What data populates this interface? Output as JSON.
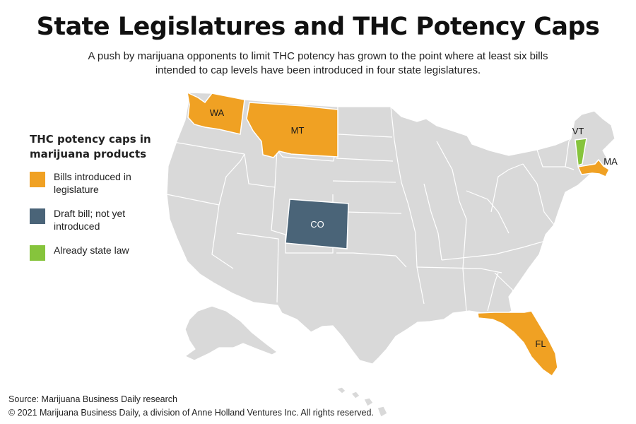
{
  "title": "State Legislatures and THC Potency Caps",
  "subtitle": "A push by marijuana opponents to limit THC potency has grown to the point where at least six bills intended to cap levels have been introduced in four state legislatures.",
  "legend": {
    "title": "THC potency caps in marijuana products",
    "items": [
      {
        "label": "Bills introduced in legislature",
        "color": "#f0a123"
      },
      {
        "label": "Draft bill; not yet introduced",
        "color": "#4a6478"
      },
      {
        "label": "Already state law",
        "color": "#86c43c"
      }
    ]
  },
  "map": {
    "base_color": "#d9d9d9",
    "border_color": "#ffffff",
    "states": {
      "WA": {
        "label": "WA",
        "status": "Bills introduced in legislature"
      },
      "MT": {
        "label": "MT",
        "status": "Bills introduced in legislature"
      },
      "MA": {
        "label": "MA",
        "status": "Bills introduced in legislature"
      },
      "FL": {
        "label": "FL",
        "status": "Bills introduced in legislature"
      },
      "CO": {
        "label": "CO",
        "status": "Draft bill; not yet introduced"
      },
      "VT": {
        "label": "VT",
        "status": "Already state law"
      }
    }
  },
  "footer": {
    "source": "Source: Marijuana Business Daily research",
    "copyright": "© 2021 Marijuana Business Daily, a division of Anne Holland Ventures Inc. All rights reserved."
  }
}
